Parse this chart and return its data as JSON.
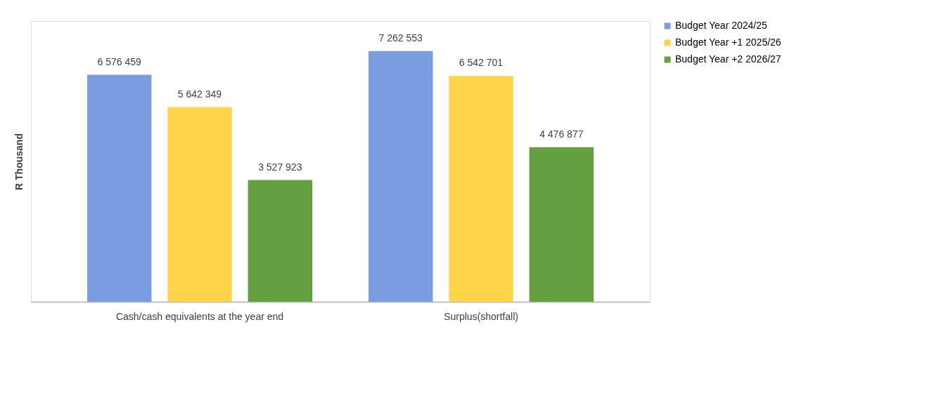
{
  "chart_data": {
    "type": "bar",
    "ylabel": "R Thousand",
    "categories": [
      "Cash/cash equivalents at the year end",
      "Surplus(shortfall)"
    ],
    "series": [
      {
        "name": "Budget Year 2024/25",
        "color": "#7b9ce0",
        "values": [
          6576459,
          7262553
        ],
        "value_labels": [
          "6 576 459",
          "7 262 553"
        ]
      },
      {
        "name": "Budget Year +1 2025/26",
        "color": "#ffd448",
        "values": [
          5642349,
          6542701
        ],
        "value_labels": [
          "5 642 349",
          "6 542 701"
        ]
      },
      {
        "name": "Budget Year +2 2026/27",
        "color": "#65a040",
        "values": [
          3527923,
          4476877
        ],
        "value_labels": [
          "3 527 923",
          "4 476 877"
        ]
      }
    ],
    "grid": false,
    "legend": "right"
  }
}
